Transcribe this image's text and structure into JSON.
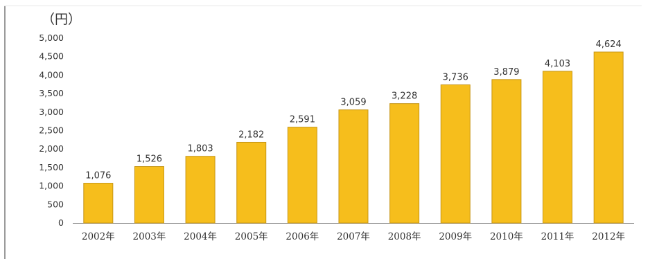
{
  "chart_data": {
    "type": "bar",
    "ylabel": "（円）",
    "categories": [
      "2002年",
      "2003年",
      "2004年",
      "2005年",
      "2006年",
      "2007年",
      "2008年",
      "2009年",
      "2010年",
      "2011年",
      "2012年"
    ],
    "values": [
      1076,
      1526,
      1803,
      2182,
      2591,
      3059,
      3228,
      3736,
      3879,
      4103,
      4624
    ],
    "value_labels": [
      "1,076",
      "1,526",
      "1,803",
      "2,182",
      "2,591",
      "3,059",
      "3,228",
      "3,736",
      "3,879",
      "4,103",
      "4,624"
    ],
    "ylim": [
      0,
      5000
    ],
    "yticks": [
      0,
      500,
      1000,
      1500,
      2000,
      2500,
      3000,
      3500,
      4000,
      4500,
      5000
    ],
    "ytick_labels": [
      "0",
      "500",
      "1,000",
      "1,500",
      "2,000",
      "2,500",
      "3,000",
      "3,500",
      "4,000",
      "4,500",
      "5,000"
    ],
    "grid": false,
    "legend": "none",
    "colors": {
      "bar_fill": "#F6BE1C",
      "bar_stroke": "#C69514",
      "text": "#333333",
      "axis": "#8c8c8c"
    }
  }
}
